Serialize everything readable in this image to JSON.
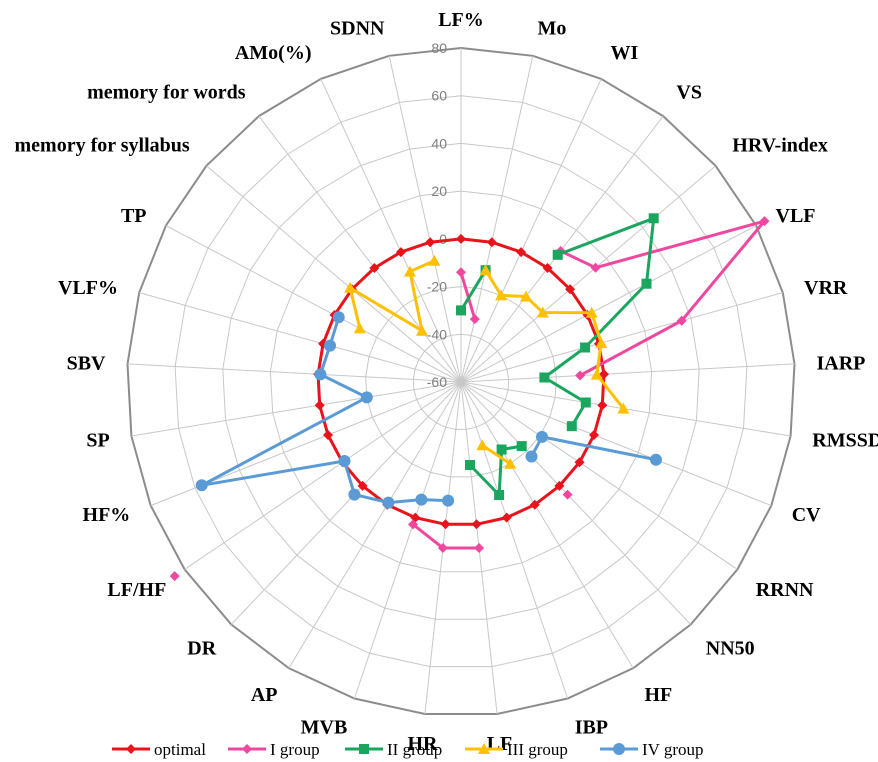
{
  "chart_data": {
    "type": "radar",
    "axes": [
      "LF%",
      "Mo",
      "WI",
      "VS",
      "HRV-index",
      "VLF",
      "VRR",
      "IARP",
      "RMSSD",
      "CV",
      "RRNN",
      "NN50",
      "HF",
      "IBP",
      "LF",
      "HR",
      "MVB",
      "AP",
      "DR",
      "LF/HF",
      "HF%",
      "SP",
      "SBV",
      "VLF%",
      "TP",
      "memory for syllabus",
      "memory for words",
      "AMo(%)",
      "SDNN"
    ],
    "rlim": [
      -60,
      80
    ],
    "ticks": [
      -60,
      -40,
      -20,
      0,
      20,
      40,
      60,
      80
    ],
    "tick_labels": [
      "-60",
      "-40",
      "-20",
      "0",
      "20",
      "40",
      "60",
      "80"
    ],
    "grid": true,
    "legend_position": "bottom",
    "series": [
      {
        "name": "optimal",
        "color": "#e8131b",
        "marker": "diamond",
        "values": [
          0,
          0,
          0,
          0,
          0,
          0,
          0,
          0,
          0,
          0,
          0,
          0,
          0,
          0,
          0,
          0,
          0,
          0,
          0,
          0,
          0,
          0,
          0,
          0,
          0,
          0,
          0,
          0,
          0
        ]
      },
      {
        "name": "I group",
        "color": "#f0479f",
        "marker": "diamond",
        "values": [
          -14,
          -33,
          null,
          9,
          14,
          84,
          36,
          -10,
          null,
          27,
          null,
          5,
          null,
          null,
          10,
          10,
          3,
          null,
          null,
          85,
          null,
          null,
          null,
          null,
          null,
          null,
          null,
          null,
          null
        ]
      },
      {
        "name": "II group",
        "color": "#1aa65e",
        "marker": "square",
        "values": [
          -30,
          -12,
          null,
          7,
          46,
          28,
          -6,
          -25,
          -7,
          -10,
          null,
          -23,
          -27,
          -10,
          -25,
          null,
          null,
          null,
          null,
          null,
          null,
          null,
          null,
          null,
          null,
          null,
          null,
          null,
          null
        ]
      },
      {
        "name": "III group",
        "color": "#ffc000",
        "marker": "triangle",
        "values": [
          null,
          -12,
          -20,
          -15,
          -15,
          2,
          1,
          -3,
          9,
          null,
          null,
          null,
          -20,
          -32,
          null,
          null,
          null,
          null,
          null,
          null,
          null,
          null,
          null,
          null,
          -12,
          1,
          -33,
          -9,
          -8
        ]
      },
      {
        "name": "IV group",
        "color": "#5b9bd5",
        "marker": "circle",
        "values": [
          null,
          null,
          null,
          null,
          null,
          null,
          null,
          null,
          null,
          28,
          -19,
          -17,
          null,
          null,
          null,
          -10,
          -8,
          -1,
          5,
          -1,
          57,
          -20,
          -1,
          -3,
          -2,
          null,
          null,
          null,
          null
        ]
      }
    ]
  }
}
